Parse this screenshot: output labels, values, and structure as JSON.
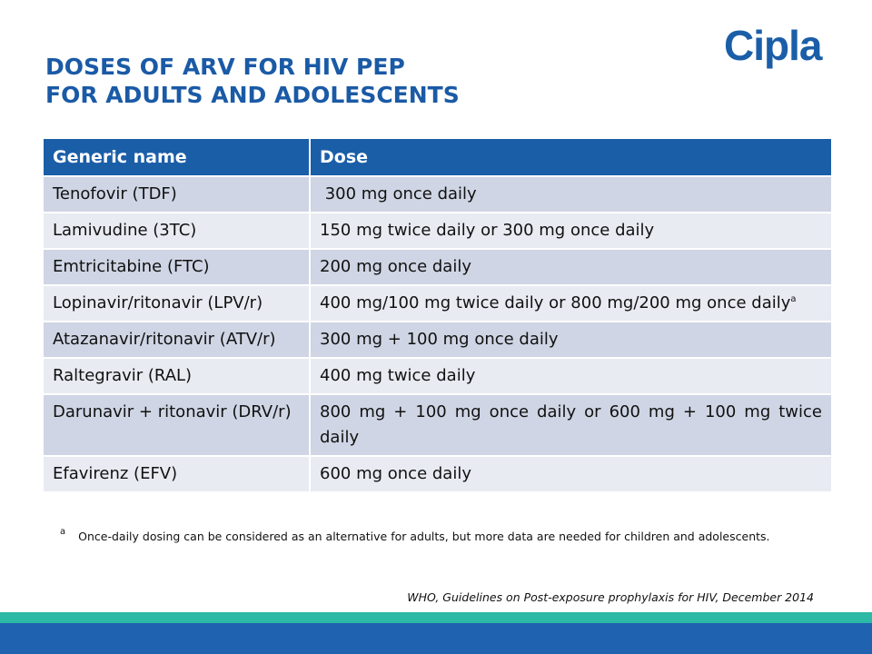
{
  "slide": {
    "title_line1": "DOSES OF ARV FOR HIV PEP",
    "title_line2": "FOR ADULTS AND ADOLESCENTS",
    "logo_text": "Cipla",
    "colors": {
      "title": "#1a5aa6",
      "header": "#1b5ea8",
      "row_dark": "#cfd5e4",
      "row_light": "#e8ebf2",
      "band_green": "#2cb9a5",
      "band_blue": "#1f62b0"
    }
  },
  "table": {
    "headers": [
      "Generic name",
      "Dose"
    ],
    "rows": [
      {
        "name": "Tenofovir (TDF)",
        "dose": " 300 mg once daily"
      },
      {
        "name": "Lamivudine (3TC)",
        "dose": "150 mg twice daily or 300 mg once daily"
      },
      {
        "name": "Emtricitabine (FTC)",
        "dose": "200 mg once daily"
      },
      {
        "name": "Lopinavir/ritonavir (LPV/r)",
        "dose": "400 mg/100 mg twice daily or 800 mg/200 mg once daily",
        "dose_sup": "a"
      },
      {
        "name": "Atazanavir/ritonavir (ATV/r)",
        "dose": "300 mg + 100 mg once daily"
      },
      {
        "name": "Raltegravir (RAL)",
        "dose": "400 mg twice daily"
      },
      {
        "name": "Darunavir + ritonavir (DRV/r)",
        "dose": "800 mg + 100 mg once daily or 600 mg + 100 mg twice daily"
      },
      {
        "name": "Efavirenz (EFV)",
        "dose": "600 mg once daily"
      }
    ]
  },
  "footnote": {
    "mark": "a",
    "text": "Once-daily dosing can be considered as an alternative for adults, but more data are needed for children and adolescents."
  },
  "source": "WHO, Guidelines on Post-exposure prophylaxis for HIV, December 2014"
}
